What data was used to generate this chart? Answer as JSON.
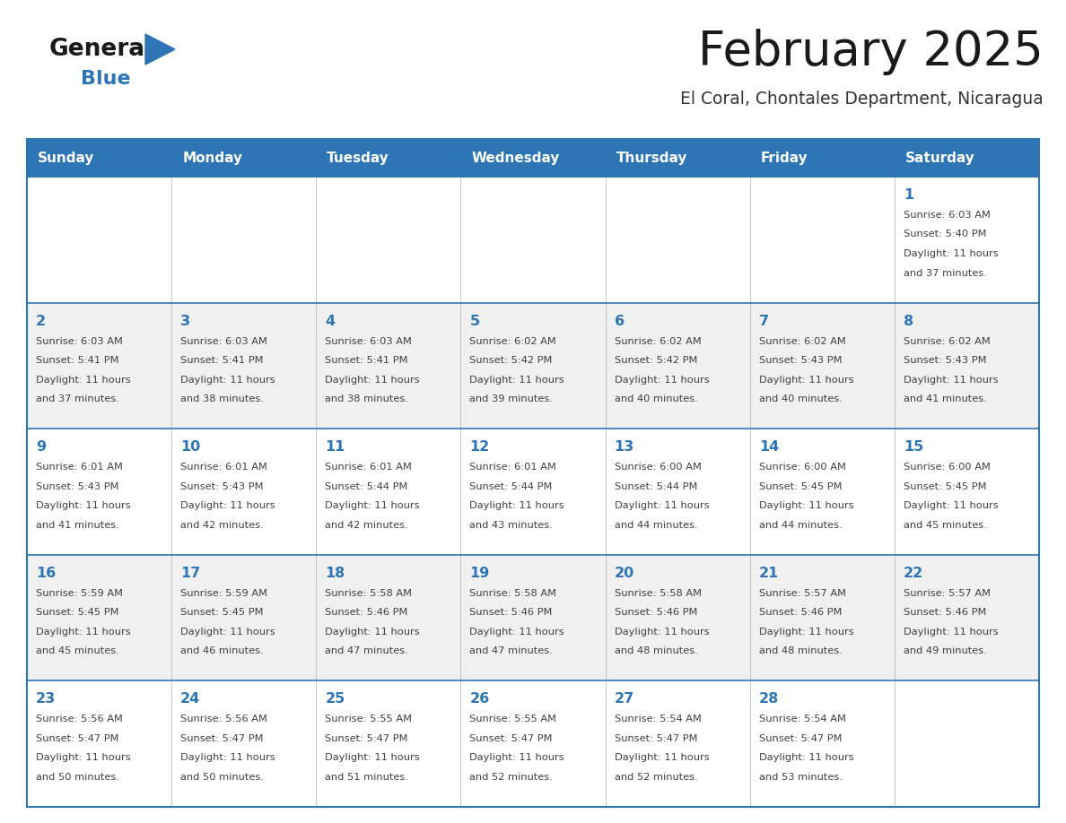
{
  "title": "February 2025",
  "subtitle": "El Coral, Chontales Department, Nicaragua",
  "header_color": "#2E75B6",
  "header_text_color": "#FFFFFF",
  "day_names": [
    "Sunday",
    "Monday",
    "Tuesday",
    "Wednesday",
    "Thursday",
    "Friday",
    "Saturday"
  ],
  "bg_color": "#FFFFFF",
  "cell_bg_even": "#FFFFFF",
  "cell_bg_odd": "#F0F0F0",
  "border_color": "#2E75B6",
  "day_num_color": "#2E75B6",
  "text_color": "#404040",
  "logo_general_color": "#1a1a1a",
  "logo_blue_color": "#2E75B6",
  "weeks": [
    [
      {
        "day": null,
        "sunrise": null,
        "sunset": null,
        "daylight": null
      },
      {
        "day": null,
        "sunrise": null,
        "sunset": null,
        "daylight": null
      },
      {
        "day": null,
        "sunrise": null,
        "sunset": null,
        "daylight": null
      },
      {
        "day": null,
        "sunrise": null,
        "sunset": null,
        "daylight": null
      },
      {
        "day": null,
        "sunrise": null,
        "sunset": null,
        "daylight": null
      },
      {
        "day": null,
        "sunrise": null,
        "sunset": null,
        "daylight": null
      },
      {
        "day": 1,
        "sunrise": "6:03 AM",
        "sunset": "5:40 PM",
        "daylight": "11 hours and 37 minutes."
      }
    ],
    [
      {
        "day": 2,
        "sunrise": "6:03 AM",
        "sunset": "5:41 PM",
        "daylight": "11 hours and 37 minutes."
      },
      {
        "day": 3,
        "sunrise": "6:03 AM",
        "sunset": "5:41 PM",
        "daylight": "11 hours and 38 minutes."
      },
      {
        "day": 4,
        "sunrise": "6:03 AM",
        "sunset": "5:41 PM",
        "daylight": "11 hours and 38 minutes."
      },
      {
        "day": 5,
        "sunrise": "6:02 AM",
        "sunset": "5:42 PM",
        "daylight": "11 hours and 39 minutes."
      },
      {
        "day": 6,
        "sunrise": "6:02 AM",
        "sunset": "5:42 PM",
        "daylight": "11 hours and 40 minutes."
      },
      {
        "day": 7,
        "sunrise": "6:02 AM",
        "sunset": "5:43 PM",
        "daylight": "11 hours and 40 minutes."
      },
      {
        "day": 8,
        "sunrise": "6:02 AM",
        "sunset": "5:43 PM",
        "daylight": "11 hours and 41 minutes."
      }
    ],
    [
      {
        "day": 9,
        "sunrise": "6:01 AM",
        "sunset": "5:43 PM",
        "daylight": "11 hours and 41 minutes."
      },
      {
        "day": 10,
        "sunrise": "6:01 AM",
        "sunset": "5:43 PM",
        "daylight": "11 hours and 42 minutes."
      },
      {
        "day": 11,
        "sunrise": "6:01 AM",
        "sunset": "5:44 PM",
        "daylight": "11 hours and 42 minutes."
      },
      {
        "day": 12,
        "sunrise": "6:01 AM",
        "sunset": "5:44 PM",
        "daylight": "11 hours and 43 minutes."
      },
      {
        "day": 13,
        "sunrise": "6:00 AM",
        "sunset": "5:44 PM",
        "daylight": "11 hours and 44 minutes."
      },
      {
        "day": 14,
        "sunrise": "6:00 AM",
        "sunset": "5:45 PM",
        "daylight": "11 hours and 44 minutes."
      },
      {
        "day": 15,
        "sunrise": "6:00 AM",
        "sunset": "5:45 PM",
        "daylight": "11 hours and 45 minutes."
      }
    ],
    [
      {
        "day": 16,
        "sunrise": "5:59 AM",
        "sunset": "5:45 PM",
        "daylight": "11 hours and 45 minutes."
      },
      {
        "day": 17,
        "sunrise": "5:59 AM",
        "sunset": "5:45 PM",
        "daylight": "11 hours and 46 minutes."
      },
      {
        "day": 18,
        "sunrise": "5:58 AM",
        "sunset": "5:46 PM",
        "daylight": "11 hours and 47 minutes."
      },
      {
        "day": 19,
        "sunrise": "5:58 AM",
        "sunset": "5:46 PM",
        "daylight": "11 hours and 47 minutes."
      },
      {
        "day": 20,
        "sunrise": "5:58 AM",
        "sunset": "5:46 PM",
        "daylight": "11 hours and 48 minutes."
      },
      {
        "day": 21,
        "sunrise": "5:57 AM",
        "sunset": "5:46 PM",
        "daylight": "11 hours and 48 minutes."
      },
      {
        "day": 22,
        "sunrise": "5:57 AM",
        "sunset": "5:46 PM",
        "daylight": "11 hours and 49 minutes."
      }
    ],
    [
      {
        "day": 23,
        "sunrise": "5:56 AM",
        "sunset": "5:47 PM",
        "daylight": "11 hours and 50 minutes."
      },
      {
        "day": 24,
        "sunrise": "5:56 AM",
        "sunset": "5:47 PM",
        "daylight": "11 hours and 50 minutes."
      },
      {
        "day": 25,
        "sunrise": "5:55 AM",
        "sunset": "5:47 PM",
        "daylight": "11 hours and 51 minutes."
      },
      {
        "day": 26,
        "sunrise": "5:55 AM",
        "sunset": "5:47 PM",
        "daylight": "11 hours and 52 minutes."
      },
      {
        "day": 27,
        "sunrise": "5:54 AM",
        "sunset": "5:47 PM",
        "daylight": "11 hours and 52 minutes."
      },
      {
        "day": 28,
        "sunrise": "5:54 AM",
        "sunset": "5:47 PM",
        "daylight": "11 hours and 53 minutes."
      },
      {
        "day": null,
        "sunrise": null,
        "sunset": null,
        "daylight": null
      }
    ]
  ]
}
